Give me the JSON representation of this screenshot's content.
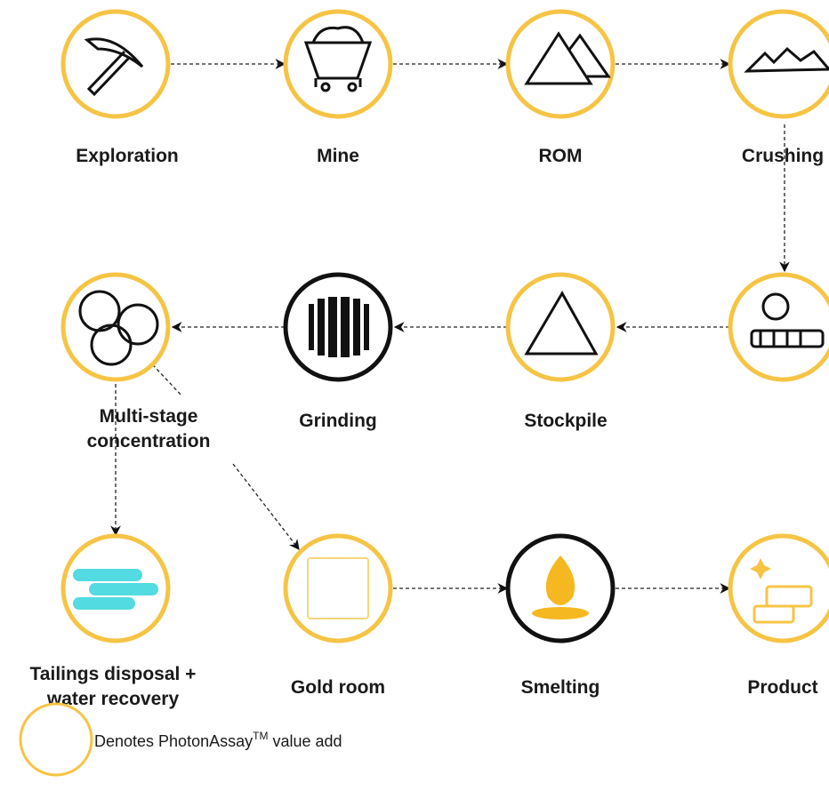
{
  "nodes": [
    {
      "label": [
        "Exploration"
      ]
    },
    {
      "label": [
        "Mine"
      ]
    },
    {
      "label": [
        "ROM"
      ]
    },
    {
      "label": [
        "Crushing"
      ]
    },
    {
      "label": [
        "Multi-stage",
        "concentration"
      ]
    },
    {
      "label": [
        "Grinding"
      ]
    },
    {
      "label": [
        "Stockpile"
      ]
    },
    {
      "label": [
        "Tailings disposal +",
        "water recovery"
      ]
    },
    {
      "label": [
        "Gold room"
      ]
    },
    {
      "label": [
        "Smelting"
      ]
    },
    {
      "label": [
        "Product"
      ]
    }
  ],
  "legend": {
    "text": "Denotes PhotonAssay",
    "superscript": "TM",
    "suffix": " value add"
  }
}
